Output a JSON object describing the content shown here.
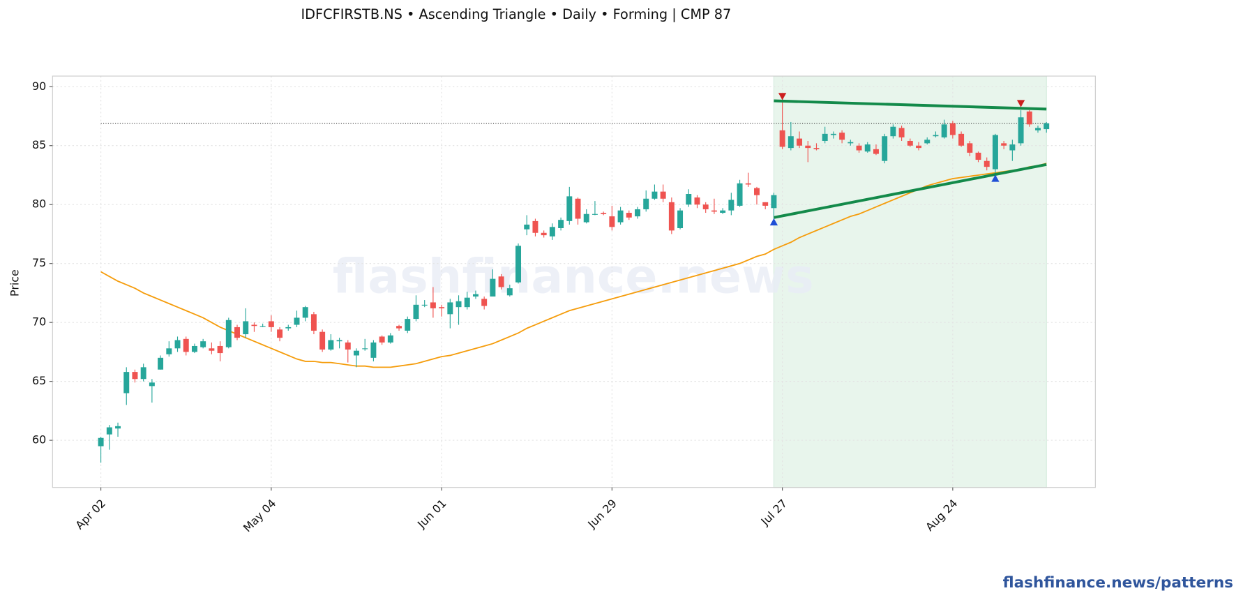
{
  "chart_data": {
    "type": "candlestick",
    "title": "IDFCFIRSTB.NS  •  Ascending Triangle  •  Daily  •  Forming  |  CMP 87",
    "ylabel": "Price",
    "watermark": "flashfinance.news",
    "categories": [
      "Apr 02",
      null,
      null,
      null,
      null,
      null,
      null,
      null,
      null,
      null,
      null,
      null,
      null,
      null,
      null,
      null,
      null,
      null,
      null,
      null,
      "May 04",
      null,
      null,
      null,
      null,
      null,
      null,
      null,
      null,
      null,
      null,
      null,
      null,
      null,
      null,
      null,
      null,
      null,
      null,
      null,
      "Jun 01",
      null,
      null,
      null,
      null,
      null,
      null,
      null,
      null,
      null,
      null,
      null,
      null,
      null,
      null,
      null,
      null,
      null,
      null,
      null,
      "Jun 29",
      null,
      null,
      null,
      null,
      null,
      null,
      null,
      null,
      null,
      null,
      null,
      null,
      null,
      null,
      null,
      null,
      null,
      null,
      null,
      "Jul 27",
      null,
      null,
      null,
      null,
      null,
      null,
      null,
      null,
      null,
      null,
      null,
      null,
      null,
      null,
      null,
      null,
      null,
      null,
      null,
      "Aug 24",
      null,
      null,
      null,
      null,
      null,
      null,
      null,
      null,
      null,
      null,
      null
    ],
    "open": [
      59.5,
      60.5,
      61.0,
      64.0,
      65.8,
      65.2,
      64.6,
      66.0,
      67.3,
      67.8,
      68.6,
      67.5,
      67.9,
      67.8,
      68.0,
      67.9,
      69.6,
      69.0,
      69.8,
      69.7,
      70.1,
      69.4,
      69.5,
      69.8,
      70.4,
      70.7,
      69.2,
      67.7,
      68.4,
      68.3,
      67.2,
      67.8,
      67.0,
      68.8,
      68.3,
      69.7,
      69.3,
      70.3,
      71.5,
      71.7,
      71.3,
      70.7,
      71.3,
      71.3,
      72.2,
      72.0,
      72.2,
      73.9,
      72.3,
      73.4,
      77.9,
      78.6,
      77.6,
      77.3,
      78.0,
      78.6,
      80.5,
      78.5,
      79.2,
      79.3,
      79.0,
      78.5,
      79.3,
      79.0,
      79.6,
      80.5,
      81.1,
      80.2,
      78.0,
      80.0,
      80.6,
      80.0,
      79.5,
      79.3,
      79.5,
      79.9,
      81.8,
      81.4,
      80.2,
      79.7,
      86.3,
      84.8,
      85.6,
      85.0,
      84.8,
      85.4,
      85.9,
      86.1,
      85.2,
      85.0,
      84.5,
      84.7,
      83.7,
      85.8,
      86.5,
      85.4,
      85.0,
      85.2,
      85.8,
      85.7,
      86.9,
      86.0,
      85.2,
      84.4,
      83.7,
      83.0,
      85.2,
      84.6,
      85.2,
      87.9,
      86.3,
      86.4
    ],
    "high": [
      60.3,
      61.3,
      61.5,
      66.2,
      66.0,
      66.5,
      65.2,
      67.2,
      68.4,
      68.8,
      68.8,
      68.2,
      68.6,
      68.3,
      68.4,
      70.4,
      69.8,
      71.2,
      70.0,
      69.9,
      70.6,
      69.6,
      69.8,
      71.0,
      71.4,
      70.9,
      69.4,
      69.0,
      68.7,
      68.5,
      67.8,
      68.6,
      68.5,
      68.9,
      69.1,
      69.8,
      70.5,
      72.3,
      71.9,
      73.0,
      71.5,
      72.0,
      72.3,
      72.6,
      72.7,
      72.2,
      74.5,
      74.1,
      73.2,
      76.7,
      79.1,
      78.8,
      77.8,
      78.4,
      78.9,
      81.5,
      80.6,
      79.6,
      80.3,
      79.4,
      79.9,
      79.8,
      79.5,
      79.8,
      81.2,
      81.7,
      81.7,
      80.6,
      79.7,
      81.3,
      80.8,
      80.2,
      80.5,
      79.7,
      81.0,
      82.1,
      82.7,
      81.5,
      80.2,
      81.0,
      89.0,
      87.0,
      86.2,
      85.4,
      85.2,
      86.6,
      86.2,
      86.3,
      85.5,
      85.2,
      85.3,
      85.1,
      86.0,
      86.8,
      86.7,
      85.6,
      85.3,
      85.7,
      86.2,
      87.2,
      87.1,
      86.2,
      85.4,
      84.5,
      84.0,
      86.0,
      85.4,
      85.5,
      88.0,
      88.0,
      86.7,
      87.0
    ],
    "low": [
      58.1,
      59.2,
      60.3,
      63.0,
      64.9,
      65.0,
      63.2,
      66.0,
      67.1,
      67.5,
      67.2,
      67.4,
      67.8,
      67.3,
      66.7,
      67.8,
      68.5,
      68.7,
      69.2,
      69.6,
      69.2,
      68.4,
      69.3,
      69.6,
      70.1,
      69.0,
      67.5,
      67.6,
      67.8,
      66.6,
      66.2,
      67.6,
      66.7,
      68.1,
      68.2,
      69.3,
      69.1,
      70.1,
      71.3,
      70.4,
      70.5,
      69.5,
      69.8,
      71.1,
      72.0,
      71.1,
      72.2,
      72.8,
      72.2,
      73.3,
      77.4,
      77.3,
      77.2,
      77.0,
      77.8,
      78.3,
      78.3,
      78.4,
      79.1,
      79.1,
      77.8,
      78.3,
      78.7,
      78.8,
      79.4,
      80.4,
      80.2,
      77.5,
      77.9,
      79.8,
      79.7,
      79.3,
      79.2,
      79.2,
      79.1,
      79.8,
      81.5,
      80.0,
      79.6,
      78.3,
      84.7,
      84.6,
      84.8,
      83.6,
      84.6,
      85.2,
      85.6,
      85.2,
      85.0,
      84.4,
      84.4,
      84.2,
      83.5,
      85.6,
      85.4,
      84.9,
      84.6,
      85.1,
      85.7,
      85.6,
      85.6,
      84.9,
      84.1,
      83.6,
      82.9,
      82.4,
      84.7,
      83.7,
      85.0,
      86.6,
      86.1,
      86.1
    ],
    "close": [
      60.2,
      61.1,
      61.2,
      65.8,
      65.2,
      66.2,
      64.9,
      67.0,
      67.8,
      68.5,
      67.5,
      68.0,
      68.4,
      67.6,
      67.4,
      70.2,
      68.7,
      70.1,
      69.7,
      69.7,
      69.6,
      68.7,
      69.6,
      70.4,
      71.3,
      69.3,
      67.7,
      68.5,
      68.5,
      67.7,
      67.6,
      67.8,
      68.3,
      68.3,
      68.9,
      69.5,
      70.3,
      71.5,
      71.5,
      71.2,
      71.2,
      71.7,
      71.8,
      72.1,
      72.4,
      71.4,
      73.7,
      73.0,
      72.9,
      76.5,
      78.3,
      77.6,
      77.4,
      78.1,
      78.7,
      80.7,
      78.8,
      79.2,
      79.2,
      79.2,
      78.1,
      79.5,
      78.9,
      79.6,
      80.5,
      81.1,
      80.5,
      77.8,
      79.5,
      80.9,
      80.0,
      79.6,
      79.4,
      79.5,
      80.4,
      81.8,
      81.7,
      80.8,
      79.9,
      80.8,
      84.9,
      85.8,
      85.0,
      84.8,
      84.7,
      86.0,
      86.0,
      85.5,
      85.3,
      84.6,
      85.1,
      84.3,
      85.8,
      86.6,
      85.7,
      85.0,
      84.8,
      85.5,
      85.9,
      86.8,
      85.9,
      85.0,
      84.4,
      83.8,
      83.2,
      85.9,
      85.0,
      85.1,
      87.4,
      86.8,
      86.5,
      86.9
    ],
    "up_color": "#26a69a",
    "down_color": "#ef5350",
    "ma": {
      "color": "#f59c0b",
      "values": [
        74.3,
        73.9,
        73.5,
        73.2,
        72.9,
        72.5,
        72.2,
        71.9,
        71.6,
        71.3,
        71.0,
        70.7,
        70.4,
        70.0,
        69.6,
        69.3,
        69.0,
        68.7,
        68.4,
        68.1,
        67.8,
        67.5,
        67.2,
        66.9,
        66.7,
        66.7,
        66.6,
        66.6,
        66.5,
        66.4,
        66.3,
        66.3,
        66.2,
        66.2,
        66.2,
        66.3,
        66.4,
        66.5,
        66.7,
        66.9,
        67.1,
        67.2,
        67.4,
        67.6,
        67.8,
        68.0,
        68.2,
        68.5,
        68.8,
        69.1,
        69.5,
        69.8,
        70.1,
        70.4,
        70.7,
        71.0,
        71.2,
        71.4,
        71.6,
        71.8,
        72.0,
        72.2,
        72.4,
        72.6,
        72.8,
        73.0,
        73.2,
        73.4,
        73.6,
        73.8,
        74.0,
        74.2,
        74.4,
        74.6,
        74.8,
        75.0,
        75.3,
        75.6,
        75.8,
        76.2,
        76.5,
        76.8,
        77.2,
        77.5,
        77.8,
        78.1,
        78.4,
        78.7,
        79.0,
        79.2,
        79.5,
        79.8,
        80.1,
        80.4,
        80.7,
        81.0,
        81.3,
        81.6,
        81.8,
        82.0,
        82.2,
        82.3,
        82.4,
        82.5,
        82.6,
        82.7,
        82.8,
        82.9,
        83.0,
        83.2,
        83.3,
        83.5
      ]
    },
    "cmp_line": 86.9,
    "pattern_zone": [
      79,
      111
    ],
    "zone_color": "#e8f5ec",
    "resistance": {
      "color": "#138a4a",
      "x": [
        79,
        111
      ],
      "y": [
        88.8,
        88.1
      ]
    },
    "support": {
      "color": "#138a4a",
      "x": [
        79,
        111
      ],
      "y": [
        78.9,
        83.4
      ]
    },
    "peaks": {
      "color": "#cc1f1f",
      "x": [
        80,
        108
      ],
      "y": [
        89.2,
        88.6
      ]
    },
    "troughs": {
      "color": "#1f4fd6",
      "x": [
        79,
        105
      ],
      "y": [
        78.5,
        82.2
      ]
    },
    "ylim": [
      56,
      90.9
    ],
    "yticks": [
      60,
      65,
      70,
      75,
      80,
      85,
      90
    ],
    "grid": true
  },
  "footer": "flashfinance.news/patterns"
}
